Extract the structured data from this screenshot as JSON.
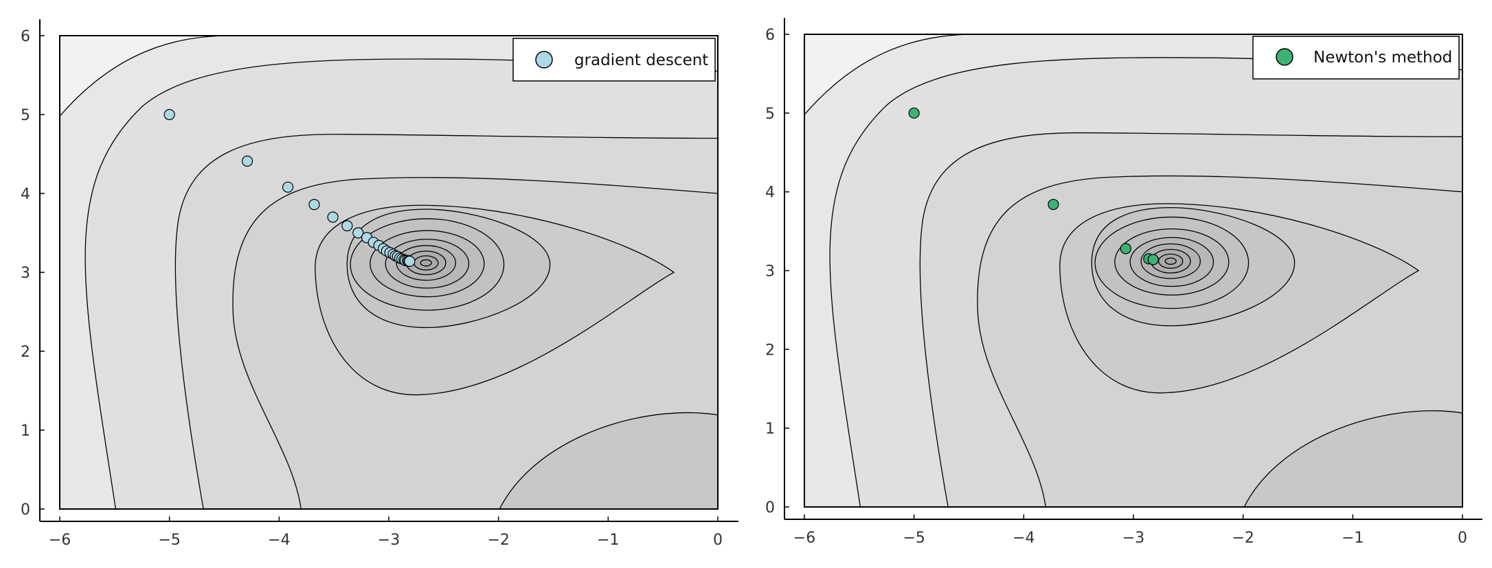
{
  "chart_data": [
    {
      "type": "scatter",
      "background": "contour",
      "xlim": [
        -6,
        0
      ],
      "ylim": [
        0,
        6
      ],
      "xticks": [
        "−6",
        "−5",
        "−4",
        "−3",
        "−2",
        "−1",
        "0"
      ],
      "yticks": [
        "0",
        "1",
        "2",
        "3",
        "4",
        "5",
        "6"
      ],
      "grid": true,
      "legend_position": "top-right",
      "series": [
        {
          "name": "gradient descent",
          "color": "#add8e6",
          "x": [
            -5.0,
            -4.29,
            -3.92,
            -3.68,
            -3.51,
            -3.38,
            -3.28,
            -3.2,
            -3.14,
            -3.09,
            -3.05,
            -3.02,
            -2.99,
            -2.96,
            -2.94,
            -2.92,
            -2.9,
            -2.88,
            -2.86,
            -2.85,
            -2.83,
            -2.82,
            -2.81
          ],
          "y": [
            5.0,
            4.41,
            4.08,
            3.86,
            3.7,
            3.59,
            3.5,
            3.44,
            3.38,
            3.34,
            3.3,
            3.27,
            3.25,
            3.23,
            3.21,
            3.2,
            3.18,
            3.17,
            3.16,
            3.15,
            3.15,
            3.14,
            3.14
          ]
        }
      ]
    },
    {
      "type": "scatter",
      "background": "contour",
      "xlim": [
        -6,
        0
      ],
      "ylim": [
        0,
        6
      ],
      "xticks": [
        "−6",
        "−5",
        "−4",
        "−3",
        "−2",
        "−1",
        "0"
      ],
      "yticks": [
        "0",
        "1",
        "2",
        "3",
        "4",
        "5",
        "6"
      ],
      "grid": true,
      "legend_position": "top-right",
      "series": [
        {
          "name": "Newton's method",
          "color": "#3cb371",
          "x": [
            -5.0,
            -3.73,
            -3.07,
            -2.86,
            -2.82,
            -2.82
          ],
          "y": [
            5.0,
            3.84,
            3.28,
            3.15,
            3.14,
            3.14
          ]
        }
      ]
    }
  ]
}
